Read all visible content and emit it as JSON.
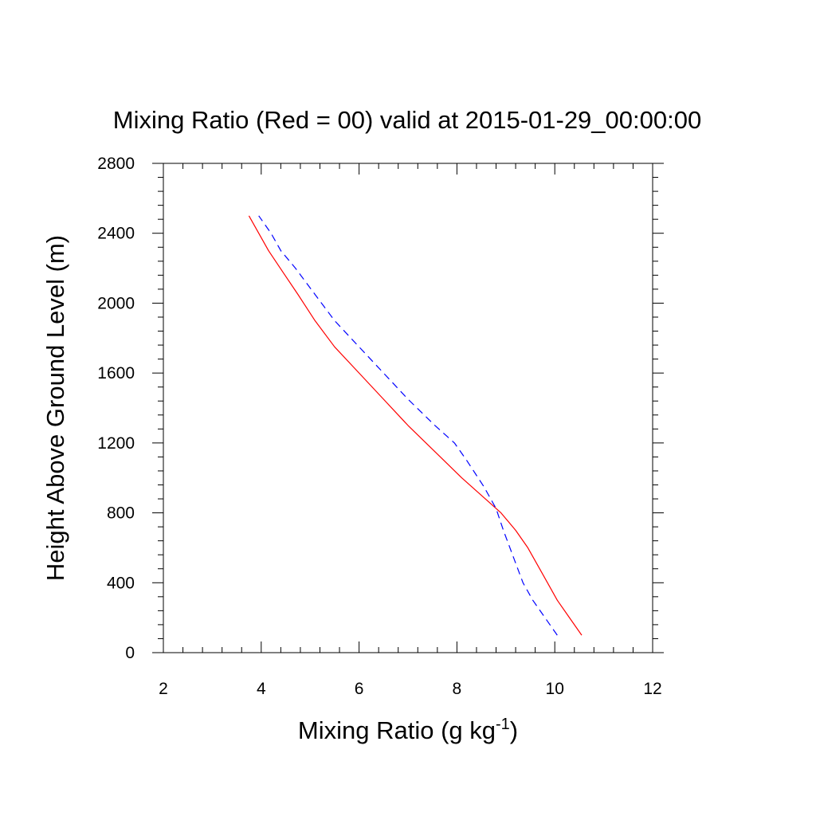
{
  "chart_data": {
    "type": "line",
    "title": "Mixing Ratio (Red = 00) valid at 2015-01-29_00:00:00",
    "xlabel": "Mixing Ratio (g kg",
    "xlabel_sup": "-1",
    "xlabel_end": ")",
    "ylabel": "Height Above Ground Level (m)",
    "xlim": [
      2,
      12
    ],
    "ylim": [
      0,
      2800
    ],
    "x_ticks": [
      2,
      4,
      6,
      8,
      10,
      12
    ],
    "x_tick_labels": [
      "2",
      "4",
      "6",
      "8",
      "10",
      "12"
    ],
    "y_ticks": [
      0,
      400,
      800,
      1200,
      1600,
      2000,
      2400,
      2800
    ],
    "y_tick_labels": [
      "0",
      "400",
      "800",
      "1200",
      "1600",
      "2000",
      "2400",
      "2800"
    ],
    "grid": false,
    "series": [
      {
        "color": "#ff0000",
        "style": "solid",
        "points": [
          [
            10.55,
            100
          ],
          [
            10.3,
            200
          ],
          [
            10.05,
            300
          ],
          [
            9.75,
            450
          ],
          [
            9.45,
            600
          ],
          [
            9.2,
            700
          ],
          [
            8.9,
            800
          ],
          [
            8.7,
            850
          ],
          [
            8.4,
            925
          ],
          [
            8.1,
            1000
          ],
          [
            7.55,
            1150
          ],
          [
            7.0,
            1300
          ],
          [
            6.5,
            1450
          ],
          [
            6.0,
            1600
          ],
          [
            5.5,
            1750
          ],
          [
            5.1,
            1900
          ],
          [
            4.75,
            2050
          ],
          [
            4.45,
            2175
          ],
          [
            4.15,
            2300
          ],
          [
            3.95,
            2400
          ],
          [
            3.75,
            2500
          ]
        ]
      },
      {
        "color": "#0000ff",
        "style": "dashed",
        "points": [
          [
            10.05,
            100
          ],
          [
            9.8,
            200
          ],
          [
            9.55,
            300
          ],
          [
            9.35,
            400
          ],
          [
            9.15,
            550
          ],
          [
            8.95,
            700
          ],
          [
            8.8,
            825
          ],
          [
            8.55,
            950
          ],
          [
            8.2,
            1100
          ],
          [
            7.95,
            1200
          ],
          [
            7.55,
            1300
          ],
          [
            7.0,
            1450
          ],
          [
            6.5,
            1600
          ],
          [
            6.0,
            1750
          ],
          [
            5.5,
            1900
          ],
          [
            5.1,
            2050
          ],
          [
            4.7,
            2200
          ],
          [
            4.4,
            2300
          ],
          [
            4.2,
            2400
          ],
          [
            3.95,
            2500
          ]
        ]
      }
    ]
  }
}
